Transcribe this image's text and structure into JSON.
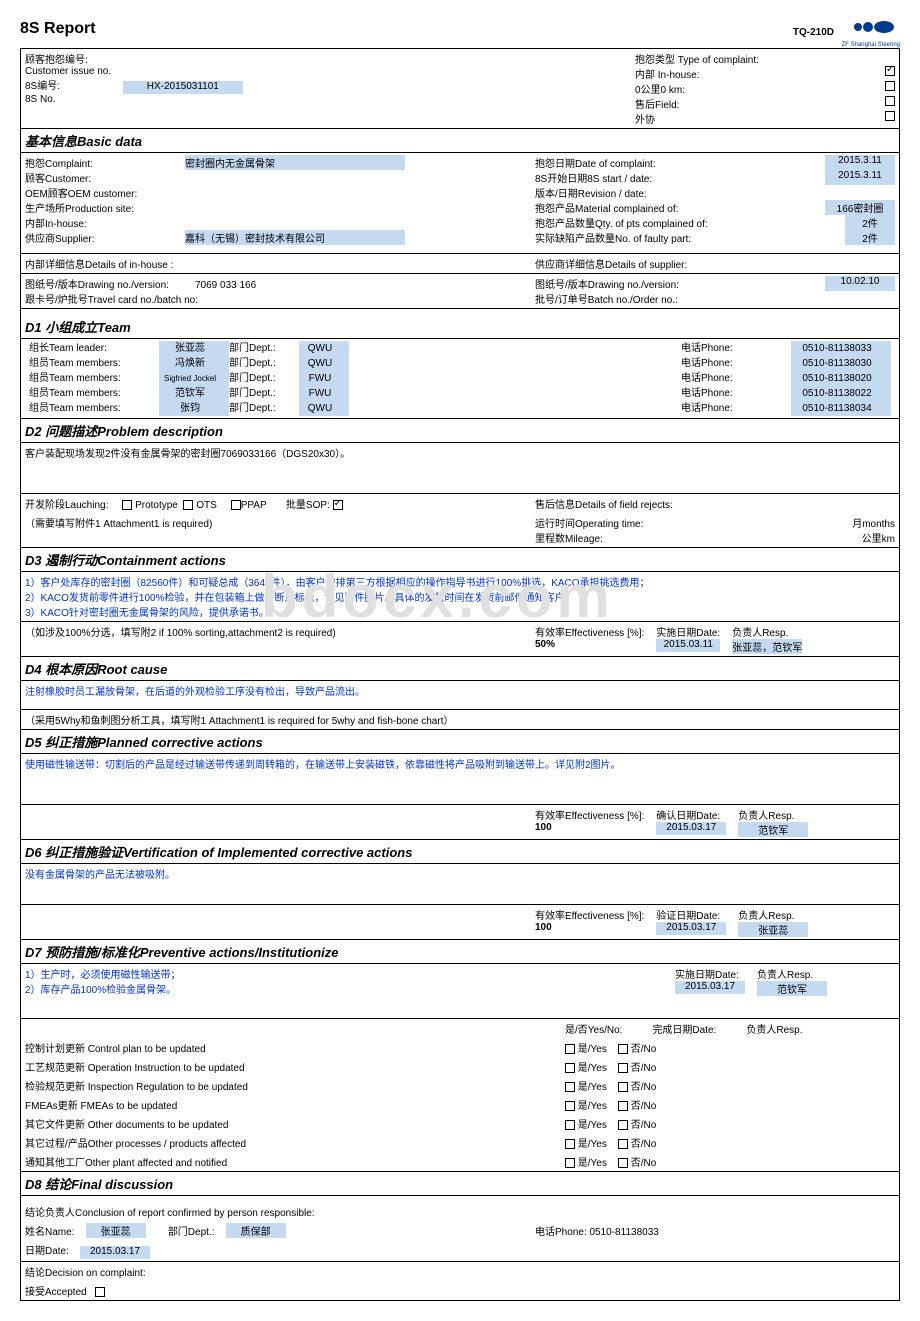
{
  "doc_code": "TQ-210D",
  "title": "8S Report",
  "logo_text": "ZF Shanghai Steering",
  "header": {
    "complaint_no_lbl": "顾客抱怨编号:",
    "customer_issue_lbl": "Customer issue no.",
    "s8no_lbl": "8S编号:",
    "s8no_lbl2": "8S No.",
    "s8no_val": "HX-2015031101",
    "complaint_type_lbl": "抱怨类型 Type of complaint:",
    "inhouse_lbl": "内部 In-house:",
    "zerokm_lbl": "0公里0 km:",
    "field_lbl": "售后Field:",
    "out_lbl": "外协"
  },
  "basic": {
    "title": "基本信息Basic data",
    "complaint_lbl": "抱怨Complaint:",
    "complaint_val": "密封圈内无金属骨架",
    "customer_lbl": "顾客Customer:",
    "oem_lbl": "OEM顾客OEM customer:",
    "prod_site_lbl": "生产场所Production site:",
    "inhouse_lbl": "内部In-house:",
    "supplier_lbl": "供应商Supplier:",
    "supplier_val": "嘉科（无锡）密封技术有限公司",
    "date_complaint_lbl": "抱怨日期Date of complaint:",
    "date_complaint_val": "2015.3.11",
    "start_date_lbl": "8S开始日期8S start / date:",
    "start_date_val": "2015.3.11",
    "revision_lbl": "版本/日期Revision / date:",
    "material_lbl": "抱怨产品Material complained of:",
    "material_val": "166密封圈",
    "qty_lbl": "抱怨产品数量Qty. of pts complained of:",
    "qty_val": "2件",
    "faulty_lbl": "实际缺陷产品数量No. of faulty part:",
    "faulty_val": "2件"
  },
  "details": {
    "inhouse_title": "内部详细信息Details of in-house :",
    "supplier_title": "供应商详细信息Details of supplier:",
    "drawing_lbl": "图纸号/版本Drawing no./version:",
    "drawing_val": "7069 033 166",
    "travel_lbl": "跟卡号/炉批号Travel card no./batch no:",
    "drawing2_val": "10.02.10",
    "batch_lbl": "批号/订单号Batch no./Order no.:"
  },
  "d1": {
    "title": "D1 小组成立Team",
    "rows": [
      {
        "r": "组长Team leader:",
        "n": "张亚蕊",
        "d": "部门Dept.:",
        "dv": "QWU",
        "p": "电话Phone:",
        "pv": "0510-81138033"
      },
      {
        "r": "组员Team members:",
        "n": "冯焕新",
        "d": "部门Dept.:",
        "dv": "QWU",
        "p": "电话Phone:",
        "pv": "0510-81138030"
      },
      {
        "r": "组员Team members:",
        "n": "Sigfried Jockel",
        "d": "部门Dept.:",
        "dv": "FWU",
        "p": "电话Phone:",
        "pv": "0510-81138020"
      },
      {
        "r": "组员Team members:",
        "n": "范钦军",
        "d": "部门Dept.:",
        "dv": "FWU",
        "p": "电话Phone:",
        "pv": "0510-81138022"
      },
      {
        "r": "组员Team members:",
        "n": "张钧",
        "d": "部门Dept.:",
        "dv": "QWU",
        "p": "电话Phone:",
        "pv": "0510-81138034"
      }
    ]
  },
  "d2": {
    "title": "D2 问题描述Problem description",
    "desc": "客户装配现场发现2件没有金属骨架的密封圈7069033166（DGS20x30）。",
    "launching_lbl": "开发阶段Lauching:",
    "proto": "Prototype",
    "ots": "OTS",
    "ppap": "PPAP",
    "sop": "批量SOP:",
    "att_note": "（需要填写附件1 Attachment1 is required)",
    "field_rejects_lbl": "售后信息Details of field rejects:",
    "operating_lbl": "运行时间Operating time:",
    "months": "月months",
    "mileage_lbl": "里程数Mileage:",
    "km": "公里km"
  },
  "d3": {
    "title": "D3 遏制行动Containment actions",
    "l1": "1）客户处库存的密封圈（82560件）和可疑总成（3648件），由客户安排第三方根据相应的操作指导书进行100%挑选，KACO承担挑选费用；",
    "l2": "2）KACO发货前零件进行100%检验，并在包装箱上做好断点标识，详见附件图片。具体的发货时间在发货前邮件通知客户。",
    "l3": "3）KACO针对密封圈无金属骨架的风险，提供承诺书。",
    "note": "（如涉及100%分选，填写附2 if 100% sorting,attachment2 is required)",
    "eff_lbl": "有效率Effectiveness [%]:",
    "eff_val": "50%",
    "date_lbl": "实施日期Date:",
    "date_val": "2015.03.11",
    "resp_lbl": "负责人Resp.",
    "resp_val": "张亚蕊，范钦军"
  },
  "d4": {
    "title": "D4 根本原因Root cause",
    "desc": "注射橡胶时员工漏放骨架，在后道的外观检验工序没有检出，导致产品流出。",
    "note": "（采用5Why和鱼刺图分析工具，填写附1 Attachment1 is required for 5why and fish-bone chart）"
  },
  "d5": {
    "title": "D5 纠正措施Planned corrective actions",
    "desc": "使用磁性输送带：切割后的产品是经过输送带传递到周转箱的，在输送带上安装磁铁，依靠磁性将产品吸附到输送带上。详见附2图片。",
    "eff_lbl": "有效率Effectiveness [%]:",
    "eff_val": "100",
    "date_lbl": "确认日期Date:",
    "date_val": "2015.03.17",
    "resp_lbl": "负责人Resp.",
    "resp_val": "范钦军"
  },
  "d6": {
    "title": "D6 纠正措施验证Vertification of Implemented corrective actions",
    "desc": "没有金属骨架的产品无法被吸附。",
    "eff_lbl": "有效率Effectiveness [%]:",
    "eff_val": "100",
    "date_lbl": "验证日期Date:",
    "date_val": "2015.03.17",
    "resp_lbl": "负责人Resp.",
    "resp_val": "张亚蕊"
  },
  "d7": {
    "title": "D7 预防措施/标准化Preventive actions/Institutionize",
    "l1": "1）生产时，必须使用磁性输送带；",
    "l2": "2）库存产品100%检验金属骨架。",
    "date_lbl": "实施日期Date:",
    "date_val": "2015.03.17",
    "resp_lbl": "负责人Resp.",
    "resp_val": "范钦军",
    "yesno_lbl": "是/否Yes/No:",
    "complete_lbl": "完成日期Date:",
    "resp2_lbl": "负责人Resp.",
    "items": [
      "控制计划更新 Control plan to be updated",
      "工艺规范更新 Operation Instruction to be updated",
      "检验规范更新    Inspection Regulation to be updated",
      "FMEAs更新        FMEAs to be updated",
      "其它文件更新    Other documents to be updated",
      "其它过程/产品Other processes / products affected",
      "通知其他工厂Other plant affected and notified"
    ],
    "yes": "是/Yes",
    "no": "否/No"
  },
  "d8": {
    "title": "D8 结论Final discussion",
    "conclusion_lbl": "结论负责人Conclusion of report confirmed by person responsible:",
    "name_lbl": "姓名Name:",
    "name_val": "张亚蕊",
    "dept_lbl": "部门Dept.:",
    "dept_val": "质保部",
    "phone_lbl": "电话Phone:",
    "phone_val": "0510-81138033",
    "date_lbl": "日期Date:",
    "date_val": "2015.03.17",
    "decision_lbl": "结论Decision on complaint:",
    "accepted_lbl": "接受Accepted"
  }
}
